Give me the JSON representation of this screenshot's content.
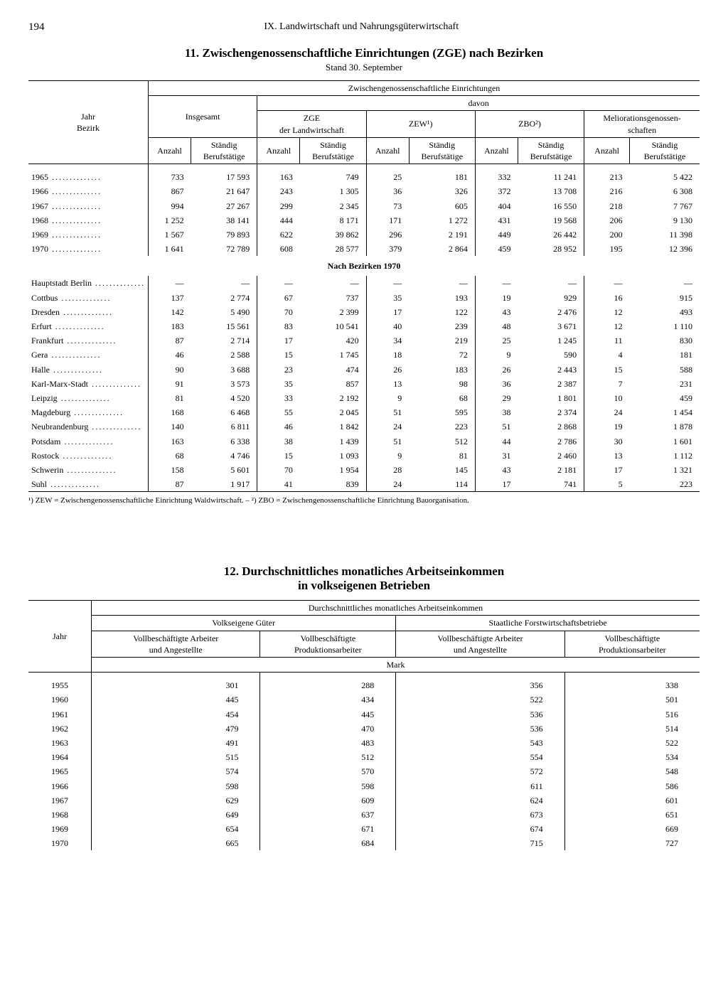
{
  "page_number": "194",
  "chapter": "IX. Landwirtschaft und Nahrungsgüterwirtschaft",
  "table11": {
    "title": "11. Zwischengenossenschaftliche Einrichtungen (ZGE) nach Bezirken",
    "subtitle": "Stand 30. September",
    "head": {
      "row_col": "Jahr\nBezirk",
      "span_all": "Zwischengenossenschaftliche Einrichtungen",
      "insgesamt": "Insgesamt",
      "davon": "davon",
      "zge": "ZGE\nder Landwirtschaft",
      "zew": "ZEW¹)",
      "zbo": "ZBO²)",
      "meli": "Meliorationsgenossen-\nschaften",
      "anzahl": "Anzahl",
      "sb": "Ständig\nBerufstätige"
    },
    "years": [
      {
        "l": "1965",
        "c": [
          "733",
          "17 593",
          "163",
          "749",
          "25",
          "181",
          "332",
          "11 241",
          "213",
          "5 422"
        ]
      },
      {
        "l": "1966",
        "c": [
          "867",
          "21 647",
          "243",
          "1 305",
          "36",
          "326",
          "372",
          "13 708",
          "216",
          "6 308"
        ]
      },
      {
        "l": "1967",
        "c": [
          "994",
          "27 267",
          "299",
          "2 345",
          "73",
          "605",
          "404",
          "16 550",
          "218",
          "7 767"
        ]
      },
      {
        "l": "1968",
        "c": [
          "1 252",
          "38 141",
          "444",
          "8 171",
          "171",
          "1 272",
          "431",
          "19 568",
          "206",
          "9 130"
        ]
      },
      {
        "l": "1969",
        "c": [
          "1 567",
          "79 893",
          "622",
          "39 862",
          "296",
          "2 191",
          "449",
          "26 442",
          "200",
          "11 398"
        ]
      },
      {
        "l": "1970",
        "c": [
          "1 641",
          "72 789",
          "608",
          "28 577",
          "379",
          "2 864",
          "459",
          "28 952",
          "195",
          "12 396"
        ]
      }
    ],
    "section_label": "Nach Bezirken 1970",
    "bezirke": [
      {
        "l": "Hauptstadt Berlin",
        "c": [
          "—",
          "—",
          "—",
          "—",
          "—",
          "—",
          "—",
          "—",
          "—",
          "—"
        ]
      },
      {
        "l": "Cottbus",
        "c": [
          "137",
          "2 774",
          "67",
          "737",
          "35",
          "193",
          "19",
          "929",
          "16",
          "915"
        ]
      },
      {
        "l": "Dresden",
        "c": [
          "142",
          "5 490",
          "70",
          "2 399",
          "17",
          "122",
          "43",
          "2 476",
          "12",
          "493"
        ]
      },
      {
        "l": "Erfurt",
        "c": [
          "183",
          "15 561",
          "83",
          "10 541",
          "40",
          "239",
          "48",
          "3 671",
          "12",
          "1 110"
        ]
      },
      {
        "l": "Frankfurt",
        "c": [
          "87",
          "2 714",
          "17",
          "420",
          "34",
          "219",
          "25",
          "1 245",
          "11",
          "830"
        ]
      },
      {
        "l": "Gera",
        "c": [
          "46",
          "2 588",
          "15",
          "1 745",
          "18",
          "72",
          "9",
          "590",
          "4",
          "181"
        ]
      },
      {
        "l": "Halle",
        "c": [
          "90",
          "3 688",
          "23",
          "474",
          "26",
          "183",
          "26",
          "2 443",
          "15",
          "588"
        ]
      },
      {
        "l": "Karl-Marx-Stadt",
        "c": [
          "91",
          "3 573",
          "35",
          "857",
          "13",
          "98",
          "36",
          "2 387",
          "7",
          "231"
        ]
      },
      {
        "l": "Leipzig",
        "c": [
          "81",
          "4 520",
          "33",
          "2 192",
          "9",
          "68",
          "29",
          "1 801",
          "10",
          "459"
        ]
      },
      {
        "l": "Magdeburg",
        "c": [
          "168",
          "6 468",
          "55",
          "2 045",
          "51",
          "595",
          "38",
          "2 374",
          "24",
          "1 454"
        ]
      },
      {
        "l": "Neubrandenburg",
        "c": [
          "140",
          "6 811",
          "46",
          "1 842",
          "24",
          "223",
          "51",
          "2 868",
          "19",
          "1 878"
        ]
      },
      {
        "l": "Potsdam",
        "c": [
          "163",
          "6 338",
          "38",
          "1 439",
          "51",
          "512",
          "44",
          "2 786",
          "30",
          "1 601"
        ]
      },
      {
        "l": "Rostock",
        "c": [
          "68",
          "4 746",
          "15",
          "1 093",
          "9",
          "81",
          "31",
          "2 460",
          "13",
          "1 112"
        ]
      },
      {
        "l": "Schwerin",
        "c": [
          "158",
          "5 601",
          "70",
          "1 954",
          "28",
          "145",
          "43",
          "2 181",
          "17",
          "1 321"
        ]
      },
      {
        "l": "Suhl",
        "c": [
          "87",
          "1 917",
          "41",
          "839",
          "24",
          "114",
          "17",
          "741",
          "5",
          "223"
        ]
      }
    ],
    "footnote": "¹) ZEW = Zwischengenossenschaftliche Einrichtung Waldwirtschaft. – ²) ZBO = Zwischengenossenschaftliche Einrichtung Bauorganisation."
  },
  "table12": {
    "title1": "12. Durchschnittliches monatliches Arbeitseinkommen",
    "title2": "in volkseigenen Betrieben",
    "head": {
      "jahr": "Jahr",
      "span_all": "Durchschnittliches monatliches Arbeitseinkommen",
      "vg": "Volkseigene Güter",
      "sf": "Staatliche Forstwirtschaftsbetriebe",
      "c1": "Vollbeschäftigte Arbeiter\nund Angestellte",
      "c2": "Vollbeschäftigte\nProduktionsarbeiter",
      "unit": "Mark"
    },
    "rows": [
      {
        "y": "1955",
        "c": [
          "301",
          "288",
          "356",
          "338"
        ]
      },
      {
        "y": "1960",
        "c": [
          "445",
          "434",
          "522",
          "501"
        ]
      },
      {
        "y": "1961",
        "c": [
          "454",
          "445",
          "536",
          "516"
        ]
      },
      {
        "y": "1962",
        "c": [
          "479",
          "470",
          "536",
          "514"
        ]
      },
      {
        "y": "1963",
        "c": [
          "491",
          "483",
          "543",
          "522"
        ]
      },
      {
        "y": "1964",
        "c": [
          "515",
          "512",
          "554",
          "534"
        ]
      },
      {
        "y": "1965",
        "c": [
          "574",
          "570",
          "572",
          "548"
        ]
      },
      {
        "y": "1966",
        "c": [
          "598",
          "598",
          "611",
          "586"
        ]
      },
      {
        "y": "1967",
        "c": [
          "629",
          "609",
          "624",
          "601"
        ]
      },
      {
        "y": "1968",
        "c": [
          "649",
          "637",
          "673",
          "651"
        ]
      },
      {
        "y": "1969",
        "c": [
          "654",
          "671",
          "674",
          "669"
        ]
      },
      {
        "y": "1970",
        "c": [
          "665",
          "684",
          "715",
          "727"
        ]
      }
    ]
  }
}
